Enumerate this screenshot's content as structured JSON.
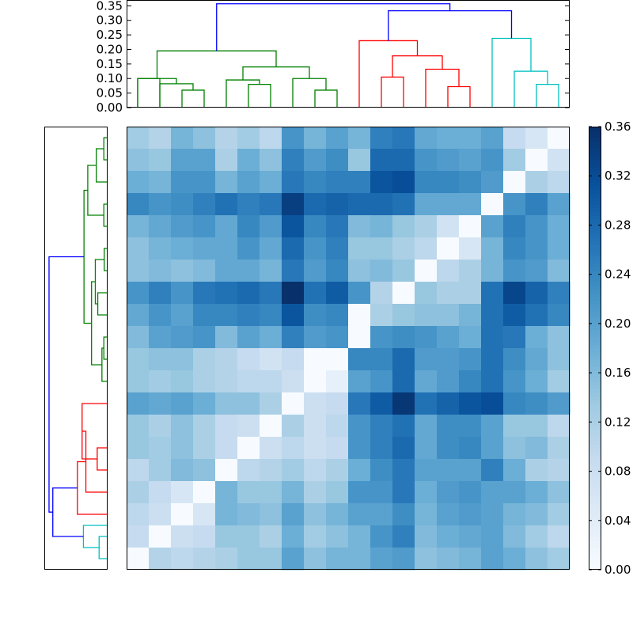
{
  "chart_data": [
    {
      "type": "dendrogram",
      "orientation": "top",
      "y_ticks": [
        "0.00",
        "0.05",
        "0.10",
        "0.15",
        "0.20",
        "0.25",
        "0.30",
        "0.35"
      ],
      "ylim": [
        0,
        0.37
      ],
      "leaves": 20,
      "merges": [
        {
          "a": {
            "x": 0,
            "y": 0
          },
          "b": {
            "x": 1,
            "y": 0
          },
          "h": 0.1,
          "color": "#008000"
        },
        {
          "a": {
            "x": 2,
            "y": 0
          },
          "b": {
            "x": 3,
            "y": 0
          },
          "h": 0.06,
          "color": "#008000"
        },
        {
          "a": {
            "x": 2.5,
            "y": 0.06
          },
          "b": {
            "x": 1,
            "y": 0
          },
          "h": 0.082,
          "color": "#008000"
        },
        {
          "a": {
            "x": 0,
            "y": 0
          },
          "b": {
            "x": 1.75,
            "y": 0.082
          },
          "h": 0.1,
          "color": "#008000"
        },
        {
          "a": {
            "x": 5,
            "y": 0
          },
          "b": {
            "x": 6,
            "y": 0
          },
          "h": 0.08,
          "color": "#008000"
        },
        {
          "a": {
            "x": 4,
            "y": 0
          },
          "b": {
            "x": 5.5,
            "y": 0.08
          },
          "h": 0.095,
          "color": "#008000"
        },
        {
          "a": {
            "x": 8,
            "y": 0
          },
          "b": {
            "x": 9,
            "y": 0
          },
          "h": 0.06,
          "color": "#008000"
        },
        {
          "a": {
            "x": 7,
            "y": 0
          },
          "b": {
            "x": 8.5,
            "y": 0.06
          },
          "h": 0.1,
          "color": "#008000"
        },
        {
          "a": {
            "x": 4.75,
            "y": 0.095
          },
          "b": {
            "x": 7.75,
            "y": 0.1
          },
          "h": 0.14,
          "color": "#008000"
        },
        {
          "a": {
            "x": 0.875,
            "y": 0.1
          },
          "b": {
            "x": 6.25,
            "y": 0.14
          },
          "h": 0.195,
          "color": "#008000"
        },
        {
          "a": {
            "x": 11,
            "y": 0
          },
          "b": {
            "x": 12,
            "y": 0
          },
          "h": 0.105,
          "color": "#ff0000"
        },
        {
          "a": {
            "x": 14,
            "y": 0
          },
          "b": {
            "x": 15,
            "y": 0
          },
          "h": 0.072,
          "color": "#ff0000"
        },
        {
          "a": {
            "x": 13,
            "y": 0
          },
          "b": {
            "x": 14.5,
            "y": 0.072
          },
          "h": 0.132,
          "color": "#ff0000"
        },
        {
          "a": {
            "x": 11.5,
            "y": 0.105
          },
          "b": {
            "x": 13.75,
            "y": 0.132
          },
          "h": 0.178,
          "color": "#ff0000"
        },
        {
          "a": {
            "x": 10,
            "y": 0
          },
          "b": {
            "x": 12.625,
            "y": 0.178
          },
          "h": 0.23,
          "color": "#ff0000"
        },
        {
          "a": {
            "x": 18,
            "y": 0
          },
          "b": {
            "x": 19,
            "y": 0
          },
          "h": 0.08,
          "color": "#00bfbf"
        },
        {
          "a": {
            "x": 17,
            "y": 0
          },
          "b": {
            "x": 18.5,
            "y": 0.08
          },
          "h": 0.125,
          "color": "#00bfbf"
        },
        {
          "a": {
            "x": 16,
            "y": 0
          },
          "b": {
            "x": 17.75,
            "y": 0.125
          },
          "h": 0.238,
          "color": "#00bfbf"
        },
        {
          "a": {
            "x": 11.3125,
            "y": 0.23
          },
          "b": {
            "x": 16.875,
            "y": 0.238
          },
          "h": 0.333,
          "color": "#0000ff"
        },
        {
          "a": {
            "x": 3.5625,
            "y": 0.195
          },
          "b": {
            "x": 14.09375,
            "y": 0.333
          },
          "h": 0.357,
          "color": "#0000ff"
        }
      ]
    },
    {
      "type": "dendrogram",
      "orientation": "left",
      "leaves": 20,
      "merges": [
        {
          "a": {
            "x": 0,
            "y": 0
          },
          "b": {
            "x": 1,
            "y": 0
          },
          "h": 0.02,
          "color": "#008000"
        },
        {
          "a": {
            "x": 0.5,
            "y": 0.02
          },
          "b": {
            "x": 2,
            "y": 0
          },
          "h": 0.06,
          "color": "#008000"
        },
        {
          "a": {
            "x": 3,
            "y": 0
          },
          "b": {
            "x": 4,
            "y": 0
          },
          "h": 0.02,
          "color": "#008000"
        },
        {
          "a": {
            "x": 1.25,
            "y": 0.06
          },
          "b": {
            "x": 3.5,
            "y": 0.02
          },
          "h": 0.105,
          "color": "#008000"
        },
        {
          "a": {
            "x": 5,
            "y": 0
          },
          "b": {
            "x": 6,
            "y": 0
          },
          "h": 0.018,
          "color": "#008000"
        },
        {
          "a": {
            "x": 7,
            "y": 0
          },
          "b": {
            "x": 8,
            "y": 0
          },
          "h": 0.052,
          "color": "#008000"
        },
        {
          "a": {
            "x": 5.5,
            "y": 0.018
          },
          "b": {
            "x": 7.5,
            "y": 0.052
          },
          "h": 0.065,
          "color": "#008000"
        },
        {
          "a": {
            "x": 9,
            "y": 0
          },
          "b": {
            "x": 10,
            "y": 0
          },
          "h": 0.02,
          "color": "#008000"
        },
        {
          "a": {
            "x": 9.5,
            "y": 0.02
          },
          "b": {
            "x": 11,
            "y": 0
          },
          "h": 0.03,
          "color": "#008000"
        },
        {
          "a": {
            "x": 6.5,
            "y": 0.065
          },
          "b": {
            "x": 10.25,
            "y": 0.03
          },
          "h": 0.085,
          "color": "#008000"
        },
        {
          "a": {
            "x": 8.375,
            "y": 0.085
          },
          "b": {
            "x": 2.375,
            "y": 0.105
          },
          "h": 0.125,
          "color": "#008000"
        },
        {
          "a": {
            "x": 14,
            "y": 0
          },
          "b": {
            "x": 15,
            "y": 0
          },
          "h": 0.055,
          "color": "#ff0000"
        },
        {
          "a": {
            "x": 12,
            "y": 0
          },
          "b": {
            "x": 14.5,
            "y": 0.055
          },
          "h": 0.135,
          "color": "#ff0000"
        },
        {
          "a": {
            "x": 13.25,
            "y": 0.135
          },
          "b": {
            "x": 16,
            "y": 0
          },
          "h": 0.115,
          "color": "#ff0000"
        },
        {
          "a": {
            "x": 14.625,
            "y": 0.115
          },
          "b": {
            "x": 17,
            "y": 0
          },
          "h": 0.16,
          "color": "#ff0000"
        },
        {
          "a": {
            "x": 18,
            "y": 0
          },
          "b": {
            "x": 19,
            "y": 0
          },
          "h": 0.045,
          "color": "#00bfbf"
        },
        {
          "a": {
            "x": 17.5,
            "y": 0
          },
          "b": {
            "x": 18.5,
            "y": 0.045
          },
          "h": 0.128,
          "color": "#00bfbf"
        },
        {
          "a": {
            "x": 15.8125,
            "y": 0.16
          },
          "b": {
            "x": 18,
            "y": 0.128
          },
          "h": 0.29,
          "color": "#0000ff"
        },
        {
          "a": {
            "x": 5.375,
            "y": 0.125
          },
          "b": {
            "x": 16.9,
            "y": 0.29
          },
          "h": 0.31,
          "color": "#0000ff"
        }
      ]
    },
    {
      "type": "heatmap",
      "colormap": "Blues",
      "rows": 20,
      "cols": 20,
      "values": [
        [
          0.13,
          0.11,
          0.17,
          0.15,
          0.11,
          0.13,
          0.1,
          0.22,
          0.17,
          0.2,
          0.17,
          0.25,
          0.26,
          0.19,
          0.18,
          0.18,
          0.2,
          0.09,
          0.06,
          0.0
        ],
        [
          0.15,
          0.14,
          0.2,
          0.2,
          0.12,
          0.18,
          0.15,
          0.25,
          0.21,
          0.23,
          0.14,
          0.28,
          0.28,
          0.22,
          0.21,
          0.2,
          0.22,
          0.13,
          0.0,
          0.07
        ],
        [
          0.18,
          0.17,
          0.22,
          0.22,
          0.17,
          0.2,
          0.18,
          0.26,
          0.24,
          0.25,
          0.25,
          0.31,
          0.32,
          0.24,
          0.24,
          0.23,
          0.21,
          0.0,
          0.12,
          0.1
        ],
        [
          0.24,
          0.22,
          0.23,
          0.25,
          0.27,
          0.25,
          0.26,
          0.34,
          0.28,
          0.29,
          0.28,
          0.28,
          0.27,
          0.19,
          0.19,
          0.19,
          0.0,
          0.22,
          0.25,
          0.2
        ],
        [
          0.17,
          0.19,
          0.21,
          0.22,
          0.19,
          0.24,
          0.21,
          0.31,
          0.24,
          0.26,
          0.16,
          0.17,
          0.14,
          0.12,
          0.07,
          0.0,
          0.2,
          0.25,
          0.22,
          0.18
        ],
        [
          0.15,
          0.17,
          0.18,
          0.19,
          0.19,
          0.22,
          0.19,
          0.28,
          0.22,
          0.25,
          0.14,
          0.14,
          0.12,
          0.1,
          0.0,
          0.06,
          0.17,
          0.24,
          0.22,
          0.18
        ],
        [
          0.15,
          0.16,
          0.15,
          0.16,
          0.19,
          0.19,
          0.17,
          0.26,
          0.21,
          0.24,
          0.15,
          0.16,
          0.14,
          0.0,
          0.1,
          0.12,
          0.17,
          0.22,
          0.21,
          0.16
        ],
        [
          0.22,
          0.25,
          0.22,
          0.26,
          0.27,
          0.28,
          0.26,
          0.36,
          0.27,
          0.3,
          0.22,
          0.11,
          0.0,
          0.14,
          0.12,
          0.12,
          0.27,
          0.33,
          0.29,
          0.25
        ],
        [
          0.19,
          0.22,
          0.2,
          0.24,
          0.24,
          0.25,
          0.24,
          0.31,
          0.23,
          0.24,
          0.0,
          0.12,
          0.14,
          0.15,
          0.15,
          0.17,
          0.27,
          0.3,
          0.27,
          0.24
        ],
        [
          0.16,
          0.2,
          0.21,
          0.22,
          0.16,
          0.2,
          0.18,
          0.25,
          0.21,
          0.22,
          0.0,
          0.22,
          0.23,
          0.22,
          0.2,
          0.18,
          0.27,
          0.26,
          0.18,
          0.15
        ],
        [
          0.14,
          0.15,
          0.15,
          0.12,
          0.11,
          0.09,
          0.07,
          0.09,
          0.0,
          0.0,
          0.24,
          0.24,
          0.28,
          0.21,
          0.21,
          0.22,
          0.27,
          0.23,
          0.19,
          0.15
        ],
        [
          0.14,
          0.13,
          0.14,
          0.12,
          0.11,
          0.1,
          0.1,
          0.08,
          0.0,
          0.03,
          0.2,
          0.22,
          0.28,
          0.19,
          0.21,
          0.24,
          0.27,
          0.22,
          0.18,
          0.13
        ],
        [
          0.2,
          0.19,
          0.2,
          0.18,
          0.15,
          0.15,
          0.12,
          0.0,
          0.08,
          0.09,
          0.26,
          0.3,
          0.35,
          0.27,
          0.29,
          0.31,
          0.32,
          0.24,
          0.23,
          0.21
        ],
        [
          0.14,
          0.12,
          0.15,
          0.12,
          0.09,
          0.08,
          0.0,
          0.12,
          0.08,
          0.1,
          0.22,
          0.25,
          0.27,
          0.19,
          0.23,
          0.23,
          0.2,
          0.14,
          0.14,
          0.1
        ],
        [
          0.14,
          0.13,
          0.15,
          0.12,
          0.09,
          0.0,
          0.08,
          0.1,
          0.08,
          0.09,
          0.22,
          0.25,
          0.28,
          0.19,
          0.23,
          0.24,
          0.2,
          0.15,
          0.16,
          0.12
        ],
        [
          0.1,
          0.13,
          0.16,
          0.15,
          0.0,
          0.1,
          0.11,
          0.13,
          0.1,
          0.12,
          0.18,
          0.23,
          0.26,
          0.2,
          0.2,
          0.2,
          0.25,
          0.18,
          0.12,
          0.11
        ],
        [
          0.12,
          0.09,
          0.06,
          0.0,
          0.17,
          0.14,
          0.14,
          0.17,
          0.12,
          0.14,
          0.22,
          0.22,
          0.26,
          0.18,
          0.21,
          0.22,
          0.2,
          0.2,
          0.18,
          0.15
        ],
        [
          0.1,
          0.08,
          0.0,
          0.06,
          0.17,
          0.16,
          0.15,
          0.2,
          0.15,
          0.17,
          0.2,
          0.2,
          0.23,
          0.17,
          0.2,
          0.21,
          0.2,
          0.17,
          0.16,
          0.13
        ],
        [
          0.09,
          0.0,
          0.08,
          0.09,
          0.14,
          0.14,
          0.12,
          0.18,
          0.13,
          0.15,
          0.17,
          0.22,
          0.25,
          0.16,
          0.18,
          0.19,
          0.2,
          0.16,
          0.13,
          0.1
        ],
        [
          0.0,
          0.11,
          0.1,
          0.11,
          0.12,
          0.14,
          0.14,
          0.2,
          0.15,
          0.17,
          0.17,
          0.2,
          0.21,
          0.15,
          0.16,
          0.17,
          0.2,
          0.18,
          0.15,
          0.13
        ]
      ]
    },
    {
      "type": "colorbar",
      "colormap": "Blues",
      "ticks": [
        "0.00",
        "0.04",
        "0.08",
        "0.12",
        "0.16",
        "0.20",
        "0.24",
        "0.28",
        "0.32",
        "0.36"
      ],
      "range": [
        0,
        0.36
      ]
    }
  ]
}
